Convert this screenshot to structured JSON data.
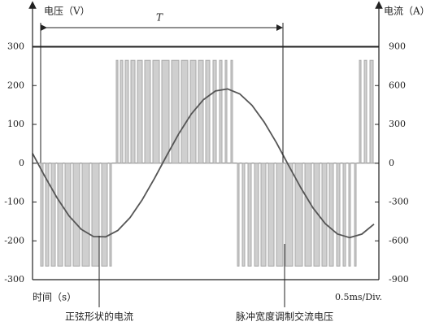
{
  "chart_data": {
    "type": "pwm",
    "y_label": "电压（V）",
    "y2_label": "电流（A）",
    "x_label": "时间（s）",
    "scale_note": "0.5ms/Div.",
    "period_label": "T",
    "annotations": [
      "正弦形状的电流",
      "脉冲宽度调制交流电压"
    ],
    "xlim": [
      0,
      426
    ],
    "ylim": [
      -300,
      300
    ],
    "yticks": [
      300,
      200,
      100,
      0,
      -100,
      -200,
      -300
    ],
    "y2lim": [
      -900,
      900
    ],
    "y2ticks": [
      900,
      600,
      300,
      0,
      -300,
      -600,
      -900
    ],
    "reference_line": 300,
    "series": [
      {
        "color": "#a8a8a8",
        "x_start": [
          10,
          16,
          23,
          31,
          40,
          50,
          61,
          73,
          85,
          95,
          103,
          108,
          114,
          121,
          129,
          138,
          148,
          159,
          171,
          183,
          194,
          204,
          213,
          222,
          230,
          237,
          244,
          252,
          258,
          265,
          273,
          281,
          290,
          300,
          311,
          323,
          335,
          346,
          356,
          365,
          374,
          382,
          389,
          396,
          402,
          408,
          415
        ],
        "x_end": [
          13,
          20,
          28,
          37,
          47,
          58,
          70,
          82,
          92,
          97,
          105,
          111,
          118,
          126,
          135,
          145,
          156,
          168,
          180,
          191,
          201,
          210,
          218,
          226,
          233,
          239,
          246,
          254,
          261,
          269,
          278,
          287,
          297,
          308,
          320,
          332,
          343,
          353,
          362,
          370,
          378,
          385,
          391,
          398,
          404,
          411,
          419
        ],
        "values": [
          -265,
          -265,
          -265,
          -265,
          -265,
          -265,
          -265,
          -265,
          -265,
          -265,
          265,
          265,
          265,
          265,
          265,
          265,
          265,
          265,
          265,
          265,
          265,
          265,
          265,
          265,
          265,
          265,
          265,
          -265,
          -265,
          -265,
          -265,
          -265,
          -265,
          -265,
          -265,
          -265,
          -265,
          -265,
          -265,
          -265,
          -265,
          -265,
          -265,
          -265,
          265,
          265,
          265
        ]
      },
      {
        "color": "#555555",
        "axis": "y2",
        "x": [
          0,
          15,
          30,
          45,
          60,
          75,
          90,
          105,
          120,
          135,
          150,
          165,
          180,
          195,
          210,
          225,
          240,
          255,
          270,
          285,
          300,
          315,
          330,
          345,
          360,
          375,
          390,
          405,
          420
        ],
        "values": [
          76,
          -100,
          -266,
          -408,
          -511,
          -567,
          -569,
          -519,
          -420,
          -282,
          -117,
          59,
          229,
          378,
          490,
          558,
          574,
          535,
          447,
          317,
          158,
          -18,
          -190,
          -346,
          -467,
          -547,
          -575,
          -548,
          -471
        ]
      }
    ]
  }
}
